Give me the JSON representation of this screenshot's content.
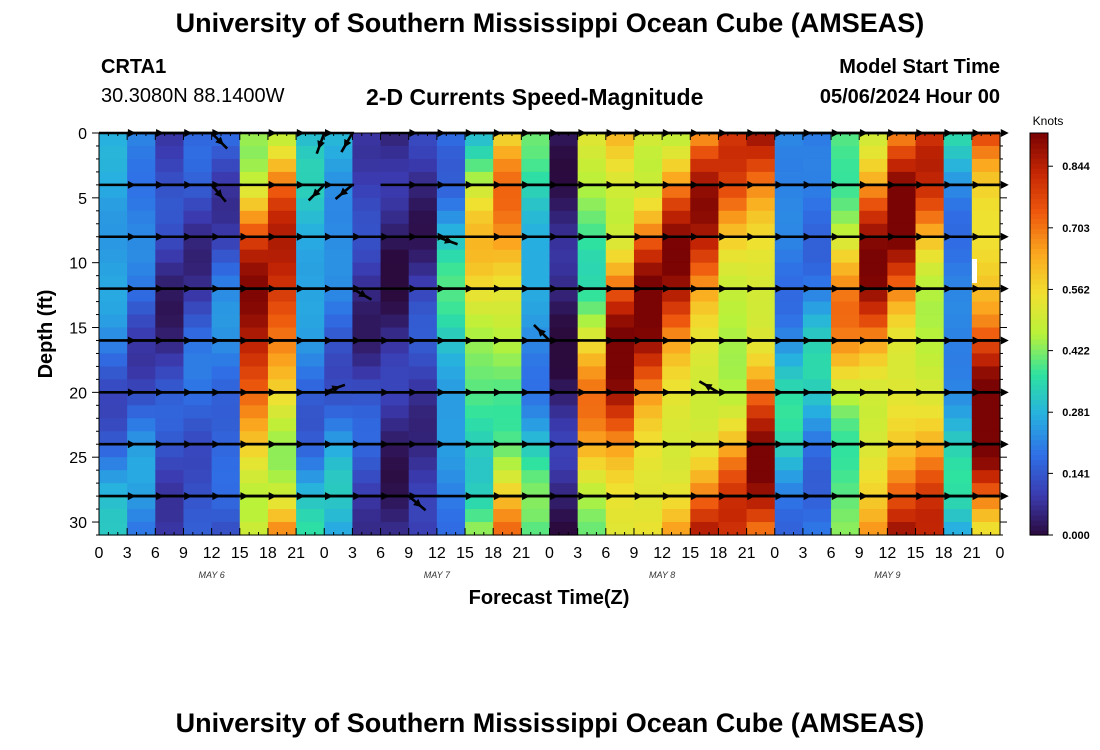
{
  "header": {
    "title": "University of Southern Mississippi Ocean Cube (AMSEAS)",
    "station_id": "CRTA1",
    "station_coords": "30.3080N  88.1400W",
    "chart_title": "2-D Currents Speed-Magnitude",
    "model_start_label": "Model Start Time",
    "model_start_value": "05/06/2024 Hour 00"
  },
  "footer": {
    "title": "University of Southern Mississippi Ocean Cube (AMSEAS)"
  },
  "chart_data": {
    "type": "heatmap",
    "title": "2-D Currents Speed-Magnitude",
    "xlabel": "Forecast Time(Z)",
    "ylabel": "Depth (ft)",
    "x_range_hours": [
      0,
      96
    ],
    "y_range_ft": [
      0,
      31
    ],
    "x_tick_labels": [
      "0",
      "3",
      "6",
      "9",
      "12",
      "15",
      "18",
      "21",
      "0",
      "3",
      "6",
      "9",
      "12",
      "15",
      "18",
      "21",
      "0",
      "3",
      "6",
      "9",
      "12",
      "15",
      "18",
      "21",
      "0",
      "3",
      "6",
      "9",
      "12",
      "15",
      "18",
      "21",
      "0"
    ],
    "y_ticks": [
      0,
      5,
      10,
      15,
      20,
      25,
      30
    ],
    "y_tick_labels": [
      "0",
      "5",
      "10",
      "15",
      "20",
      "25",
      "30"
    ],
    "day_labels": [
      "MAY 6",
      "MAY 7",
      "MAY 8",
      "MAY 9"
    ],
    "colorbar": {
      "unit": "Knots",
      "range": [
        0,
        0.92
      ],
      "tick_values": [
        0.0,
        0.141,
        0.281,
        0.422,
        0.562,
        0.703,
        0.844
      ],
      "tick_labels": [
        "0.000",
        "0.141",
        "0.281",
        "0.422",
        "0.562",
        "0.703",
        "0.844"
      ],
      "colors": [
        "#2b0a3d",
        "#3b3bb0",
        "#2f6fe6",
        "#27b0e0",
        "#2ee2a0",
        "#b8f23a",
        "#f0e030",
        "#fba81f",
        "#ee5a0e",
        "#c62704",
        "#7a0303"
      ]
    },
    "speed_columns_knots": [
      0.27,
      0.22,
      0.12,
      0.16,
      0.2,
      0.85,
      0.8,
      0.3,
      0.26,
      0.12,
      0.06,
      0.1,
      0.33,
      0.55,
      0.65,
      0.35,
      0.05,
      0.62,
      0.85,
      0.85,
      0.82,
      0.8,
      0.72,
      0.82,
      0.3,
      0.28,
      0.62,
      0.82,
      0.85,
      0.74,
      0.3,
      0.9
    ],
    "vector_depths_ft": [
      0,
      4,
      8,
      12,
      16,
      20,
      24,
      28
    ],
    "vector_hours": [
      0,
      3,
      6,
      9,
      12,
      15,
      18,
      21,
      24,
      27,
      30,
      33,
      36,
      39,
      42,
      45,
      48,
      51,
      54,
      57,
      60,
      63,
      66,
      69,
      72,
      75,
      78,
      81,
      84,
      87,
      90,
      93
    ],
    "current_vectors": [
      {
        "depth_ft": 0,
        "directions_deg": [
          90,
          90,
          90,
          90,
          135,
          90,
          90,
          90,
          200,
          210,
          90,
          90,
          90,
          90,
          90,
          90,
          90,
          90,
          90,
          90,
          90,
          90,
          90,
          90,
          90,
          90,
          90,
          90,
          90,
          90,
          90,
          90
        ]
      },
      {
        "depth_ft": 4,
        "directions_deg": [
          90,
          90,
          90,
          90,
          140,
          90,
          90,
          90,
          225,
          230,
          90,
          90,
          90,
          90,
          90,
          90,
          90,
          90,
          90,
          90,
          90,
          90,
          90,
          90,
          90,
          90,
          90,
          90,
          90,
          90,
          90,
          90
        ]
      },
      {
        "depth_ft": 8,
        "directions_deg": [
          90,
          90,
          90,
          90,
          90,
          90,
          90,
          90,
          90,
          90,
          90,
          90,
          110,
          90,
          90,
          90,
          90,
          90,
          90,
          90,
          90,
          90,
          90,
          90,
          90,
          90,
          90,
          90,
          90,
          90,
          90,
          90
        ]
      },
      {
        "depth_ft": 12,
        "directions_deg": [
          90,
          90,
          90,
          90,
          90,
          90,
          90,
          90,
          90,
          120,
          90,
          90,
          90,
          90,
          90,
          90,
          90,
          90,
          90,
          90,
          90,
          90,
          90,
          90,
          90,
          90,
          90,
          90,
          90,
          90,
          90,
          90
        ]
      },
      {
        "depth_ft": 16,
        "directions_deg": [
          90,
          90,
          90,
          90,
          90,
          90,
          90,
          90,
          90,
          90,
          90,
          90,
          90,
          90,
          90,
          90,
          315,
          90,
          90,
          90,
          90,
          90,
          90,
          90,
          90,
          90,
          90,
          90,
          90,
          90,
          90,
          90
        ]
      },
      {
        "depth_ft": 20,
        "directions_deg": [
          90,
          90,
          90,
          90,
          90,
          90,
          90,
          90,
          70,
          90,
          90,
          90,
          90,
          90,
          90,
          90,
          90,
          90,
          90,
          90,
          90,
          90,
          300,
          90,
          90,
          90,
          90,
          90,
          90,
          90,
          90,
          90
        ]
      },
      {
        "depth_ft": 24,
        "directions_deg": [
          90,
          90,
          90,
          90,
          90,
          90,
          90,
          90,
          90,
          90,
          90,
          90,
          90,
          90,
          90,
          90,
          90,
          90,
          90,
          90,
          90,
          90,
          90,
          90,
          90,
          90,
          90,
          90,
          90,
          90,
          90,
          90
        ]
      },
      {
        "depth_ft": 28,
        "directions_deg": [
          90,
          90,
          90,
          90,
          90,
          90,
          90,
          90,
          90,
          90,
          90,
          130,
          90,
          90,
          90,
          90,
          90,
          90,
          90,
          90,
          90,
          90,
          90,
          90,
          90,
          90,
          90,
          90,
          90,
          90,
          90,
          90
        ]
      }
    ]
  }
}
